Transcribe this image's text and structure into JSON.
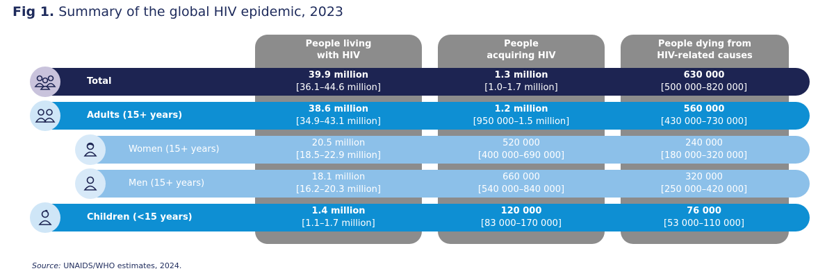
{
  "title": {
    "lead": "Fig 1.",
    "text": "Summary of the global HIV epidemic, 2023"
  },
  "columns": [
    {
      "label": "People living\nwith HIV"
    },
    {
      "label": "People\nacquiring HIV"
    },
    {
      "label": "People dying from\nHIV-related causes"
    }
  ],
  "rows": [
    {
      "label": "Total",
      "icon": "group-icon",
      "cells": [
        {
          "value": "39.9 million",
          "range": "[36.1–44.6 million]"
        },
        {
          "value": "1.3 million",
          "range": "[1.0–1.7 million]"
        },
        {
          "value": "630 000",
          "range": "[500 000–820 000]"
        }
      ]
    },
    {
      "label": "Adults (15+ years)",
      "icon": "adults-icon",
      "cells": [
        {
          "value": "38.6 million",
          "range": "[34.9–43.1 million]"
        },
        {
          "value": "1.2 million",
          "range": "[950 000–1.5 million]"
        },
        {
          "value": "560 000",
          "range": "[430 000–730 000]"
        }
      ]
    },
    {
      "label": "Women (15+ years)",
      "icon": "woman-icon",
      "cells": [
        {
          "value": "20.5 million",
          "range": "[18.5–22.9 million]"
        },
        {
          "value": "520 000",
          "range": "[400 000–690 000]"
        },
        {
          "value": "240 000",
          "range": "[180 000–320 000]"
        }
      ]
    },
    {
      "label": "Men (15+ years)",
      "icon": "man-icon",
      "cells": [
        {
          "value": "18.1 million",
          "range": "[16.2–20.3 million]"
        },
        {
          "value": "660 000",
          "range": "[540 000–840 000]"
        },
        {
          "value": "320 000",
          "range": "[250 000–420 000]"
        }
      ]
    },
    {
      "label": "Children (<15 years)",
      "icon": "child-icon",
      "cells": [
        {
          "value": "1.4 million",
          "range": "[1.1–1.7 million]"
        },
        {
          "value": "120 000",
          "range": "[83 000–170 000]"
        },
        {
          "value": "76 000",
          "range": "[53 000–110 000]"
        }
      ]
    }
  ],
  "colors": {
    "total": "#1d2452",
    "primary": "#0e8fd3",
    "secondary": "#8cc0e9",
    "column": "#8c8c8c"
  },
  "source": {
    "label": "Source:",
    "text": "UNAIDS/WHO estimates, 2024."
  }
}
